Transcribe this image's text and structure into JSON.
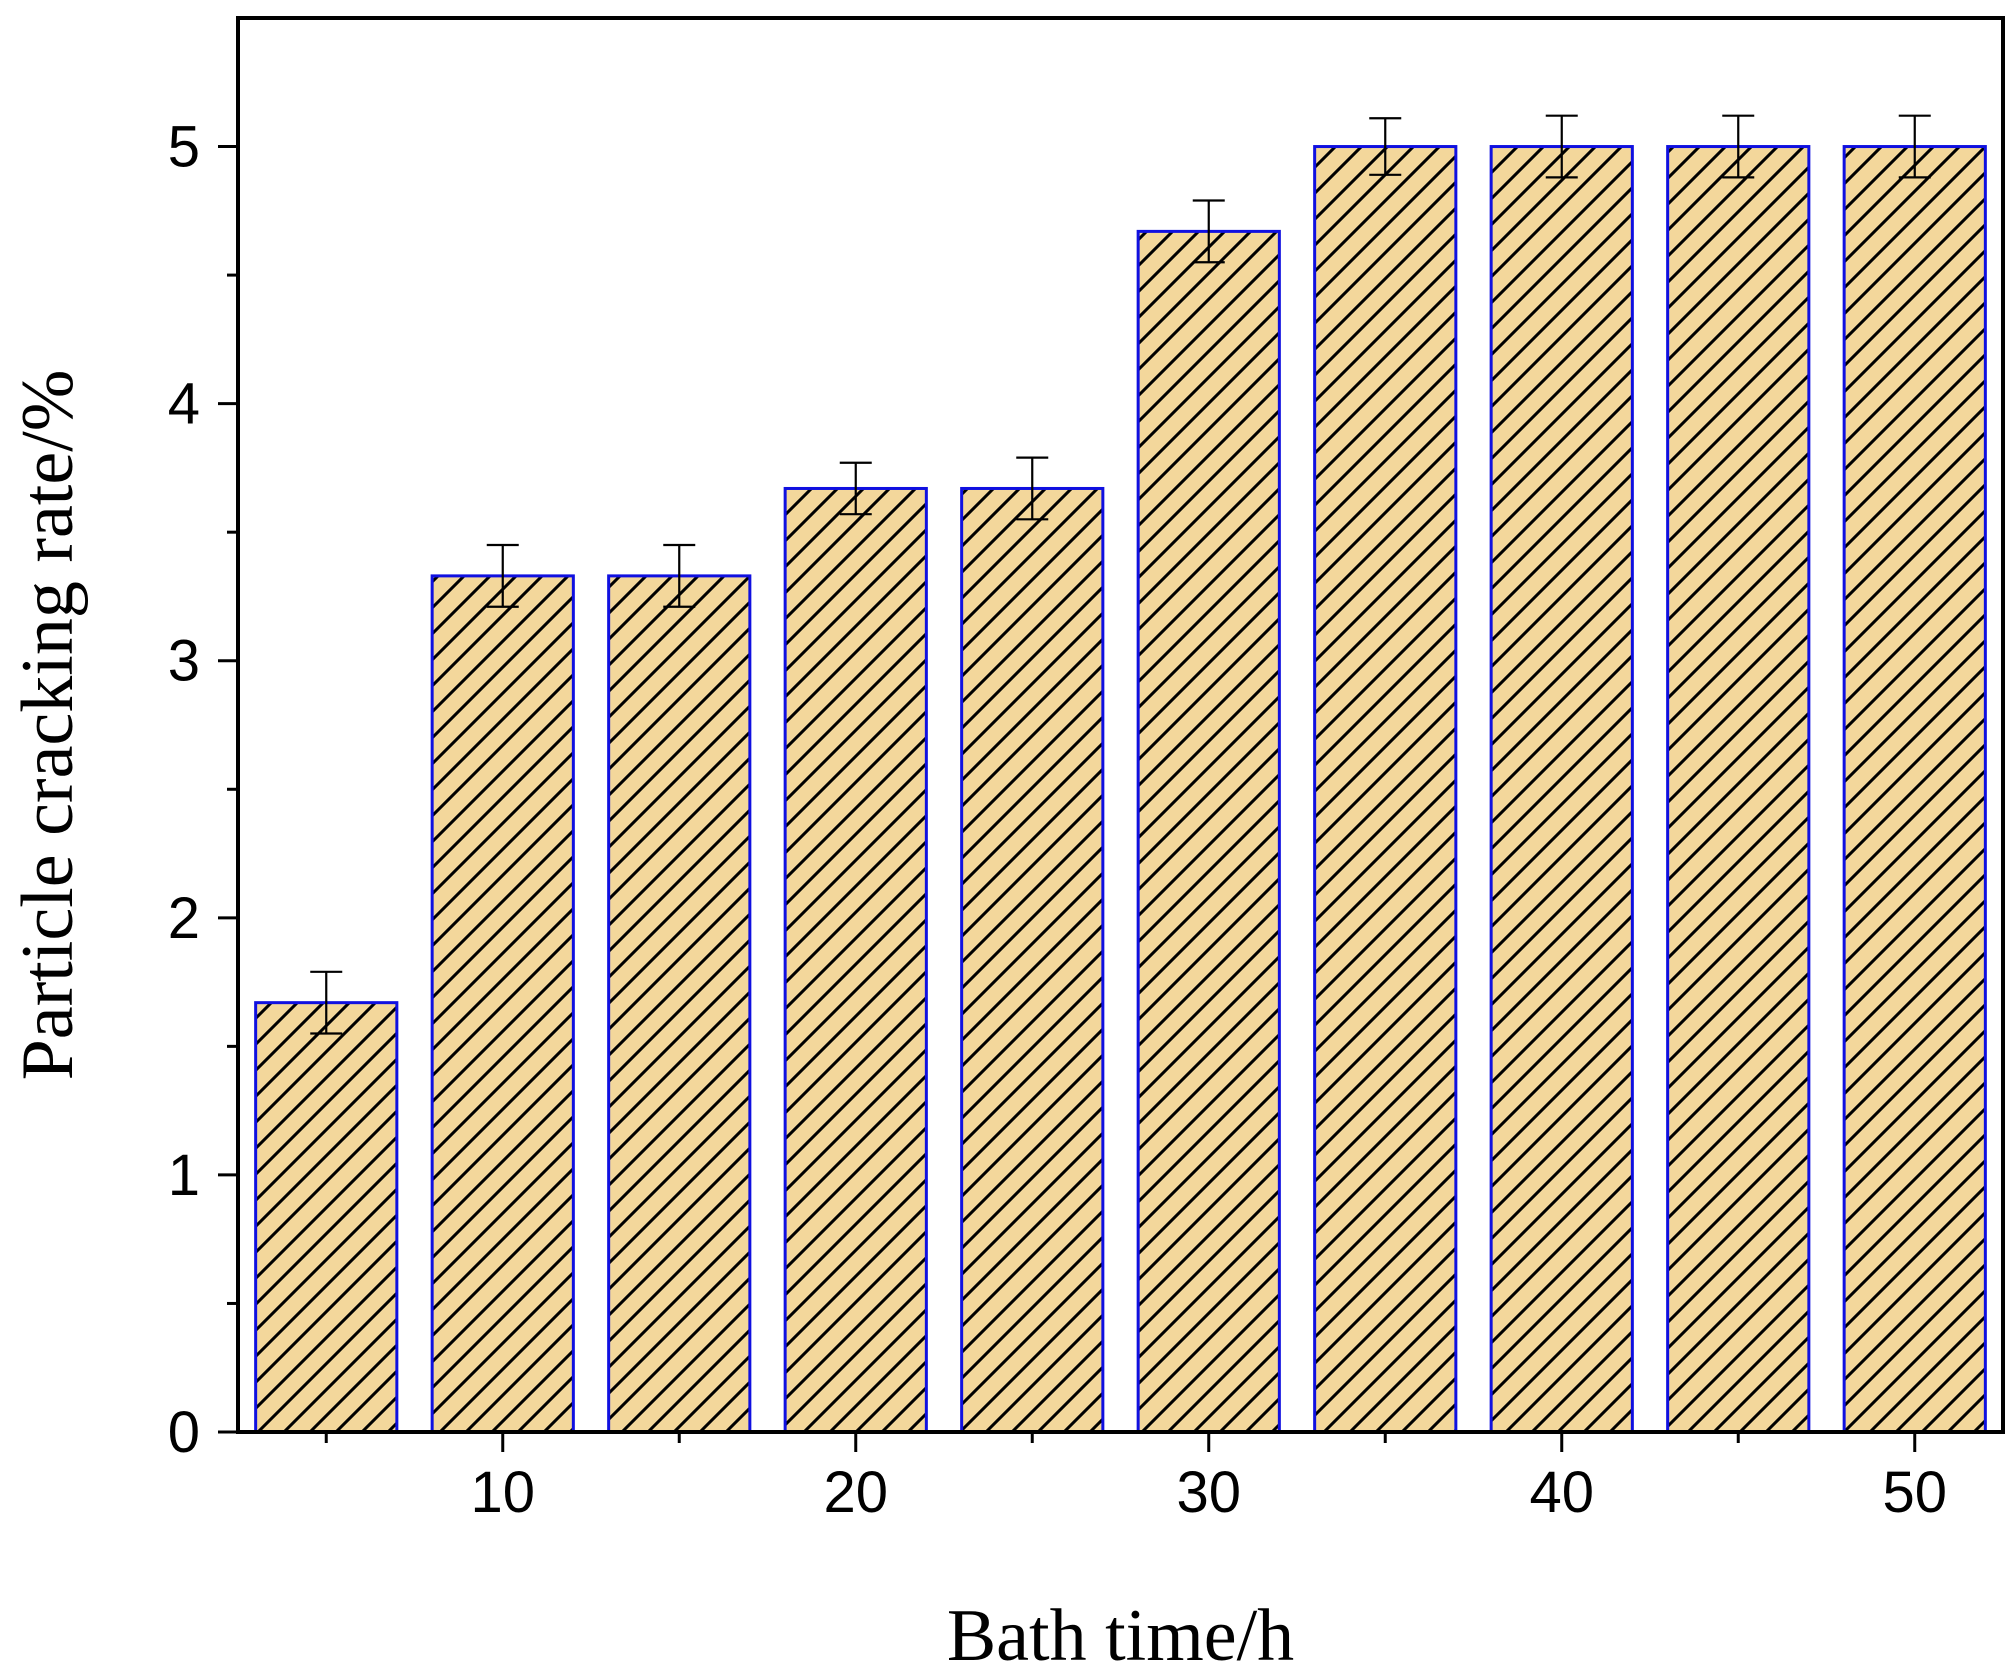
{
  "chart_data": {
    "type": "bar",
    "title": "",
    "xlabel": "Bath time/h",
    "ylabel": "Particle cracking rate/%",
    "x": [
      5,
      10,
      15,
      20,
      25,
      30,
      35,
      40,
      45,
      50
    ],
    "values": [
      1.67,
      3.33,
      3.33,
      3.67,
      3.67,
      4.67,
      5.0,
      5.0,
      5.0,
      5.0
    ],
    "errors": [
      0.12,
      0.12,
      0.12,
      0.1,
      0.12,
      0.12,
      0.11,
      0.12,
      0.12,
      0.12
    ],
    "xlim": [
      2.5,
      52.5
    ],
    "ylim": [
      0,
      5.5
    ],
    "xticks": [
      10,
      20,
      30,
      40,
      50
    ],
    "xtick_labels": [
      "10",
      "20",
      "30",
      "40",
      "50"
    ],
    "yticks": [
      0,
      1,
      2,
      3,
      4,
      5
    ],
    "ytick_labels": [
      "0",
      "1",
      "2",
      "3",
      "4",
      "5"
    ],
    "grid": false,
    "legend": "none",
    "colors": {
      "bar_fill": "#f3d79b",
      "bar_edge": "#1010e0",
      "hatch": "#000000",
      "error_bar": "#000000",
      "axis": "#000000"
    }
  }
}
